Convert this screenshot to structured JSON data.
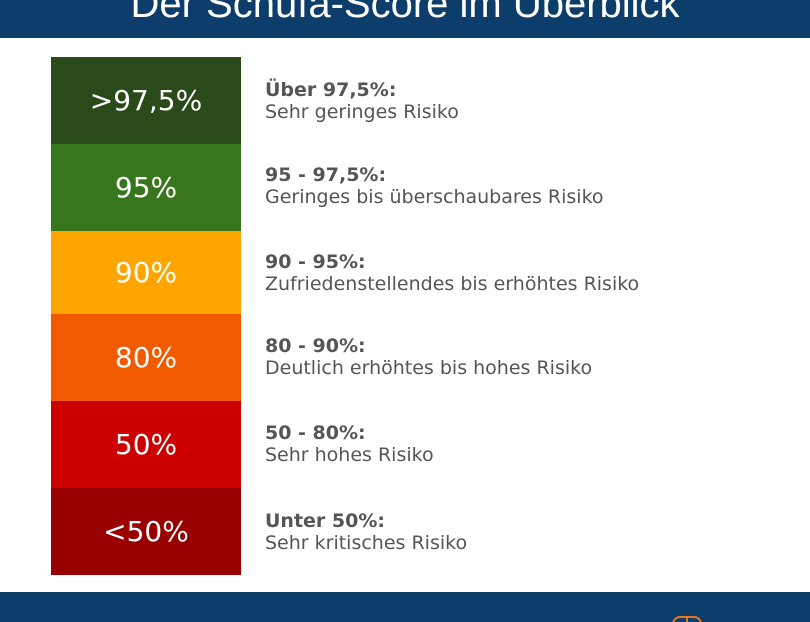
{
  "header": {
    "title": "Der Schufa-Score im Überblick",
    "background": "#0c3d6b"
  },
  "scale": [
    {
      "label": ">97,5%",
      "color": "#2b4a1a",
      "range": "Über 97,5%:",
      "description": "Sehr geringes Risiko"
    },
    {
      "label": "95%",
      "color": "#38761d",
      "range": "95 - 97,5%:",
      "description": "Geringes bis überschaubares Risiko"
    },
    {
      "label": "90%",
      "color": "#ffa500",
      "range": "90 - 95%:",
      "description": "Zufriedenstellendes bis erhöhtes Risiko"
    },
    {
      "label": "80%",
      "color": "#f25a00",
      "range": "80 - 90%:",
      "description": "Deutlich erhöhtes bis hohes Risiko"
    },
    {
      "label": "50%",
      "color": "#cc0000",
      "range": "50 - 80%:",
      "description": "Sehr hohes Risiko"
    },
    {
      "label": "<50%",
      "color": "#990000",
      "range": "Unter 50%:",
      "description": "Sehr kritisches Risiko"
    }
  ],
  "footer": {
    "background": "#0c3d6b",
    "logo_icon": "logo-icon"
  }
}
